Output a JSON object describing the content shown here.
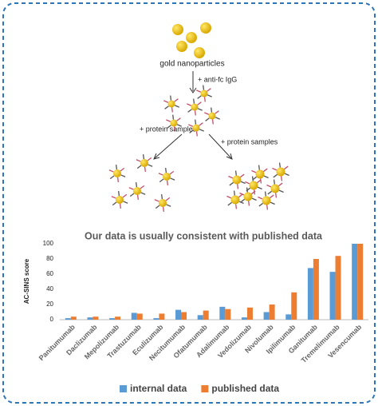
{
  "diagram": {
    "labels": [
      "gold nanoparticles",
      "+ anti-fc IgG",
      "+ protein samples",
      "+ protein samples"
    ]
  },
  "chart_data": {
    "type": "bar",
    "title": "Our data is usually consistent with published data",
    "y_label": "AC-SINS score",
    "categories": [
      "Panitumumab",
      "Daclizumab",
      "Mepolizumab",
      "Trastuzumab",
      "Eculizumab",
      "Necitumumab",
      "Ofatumumab",
      "Adalimumab",
      "Vedolizumab",
      "Nivolumab",
      "Ipilimumab",
      "Ganitumab",
      "Tremelimumab",
      "Vesencumab"
    ],
    "series": [
      {
        "name": "internal data",
        "color": "#5b9bd5",
        "values": [
          2,
          3,
          2,
          9,
          2,
          13,
          6,
          17,
          3,
          10,
          7,
          68,
          63,
          100
        ]
      },
      {
        "name": "published data",
        "color": "#ed7d31",
        "values": [
          4,
          4,
          4,
          8,
          8,
          10,
          12,
          14,
          16,
          20,
          36,
          80,
          84,
          100
        ]
      }
    ],
    "ylim": [
      0,
      100
    ],
    "yticks": [
      0,
      20,
      40,
      60,
      80,
      100
    ],
    "grid": false,
    "legend": "bottom"
  }
}
